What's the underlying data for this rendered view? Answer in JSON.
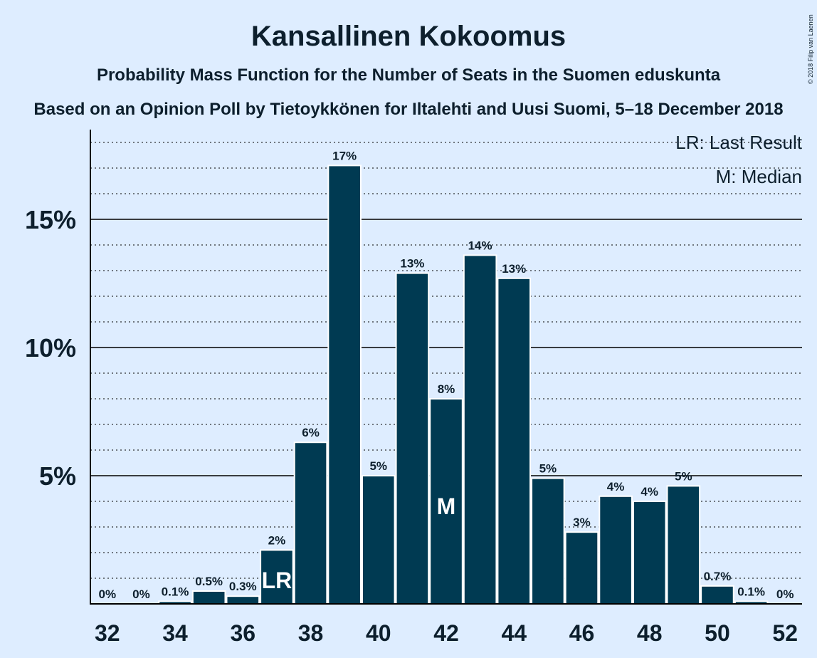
{
  "copyright": "© 2018 Filip van Laenen",
  "chart_data": {
    "type": "bar",
    "title": "Kansallinen Kokoomus",
    "subtitle": "Probability Mass Function for the Number of Seats in the Suomen eduskunta",
    "subtitle2": "Based on an Opinion Poll by Tietoykkönen for Iltalehti and Uusi Suomi, 5–18 December 2018",
    "legend": [
      "LR: Last Result",
      "M: Median"
    ],
    "x": [
      32,
      33,
      34,
      35,
      36,
      37,
      38,
      39,
      40,
      41,
      42,
      43,
      44,
      45,
      46,
      47,
      48,
      49,
      50,
      51,
      52
    ],
    "values": [
      0,
      0,
      0.1,
      0.5,
      0.3,
      2.1,
      6.3,
      17.1,
      5.0,
      12.9,
      8.0,
      13.6,
      12.7,
      4.9,
      2.8,
      4.2,
      4.0,
      4.6,
      0.7,
      0.1,
      0
    ],
    "labels": [
      "0%",
      "0%",
      "0.1%",
      "0.5%",
      "0.3%",
      "2%",
      "6%",
      "17%",
      "5%",
      "13%",
      "8%",
      "14%",
      "13%",
      "5%",
      "3%",
      "4%",
      "4%",
      "5%",
      "0.7%",
      "0.1%",
      "0%"
    ],
    "x_ticks": [
      32,
      34,
      36,
      38,
      40,
      42,
      44,
      46,
      48,
      50,
      52
    ],
    "y_ticks": [
      {
        "value": 5,
        "label": "5%"
      },
      {
        "value": 10,
        "label": "10%"
      },
      {
        "value": 15,
        "label": "15%"
      }
    ],
    "ylim": [
      0,
      18.5
    ],
    "last_result": {
      "x": 37,
      "marker": "LR"
    },
    "median": {
      "x": 42,
      "marker": "M"
    },
    "colors": {
      "bar": "#003a52",
      "background": "#deedff",
      "text": "#0d1f2d"
    }
  }
}
